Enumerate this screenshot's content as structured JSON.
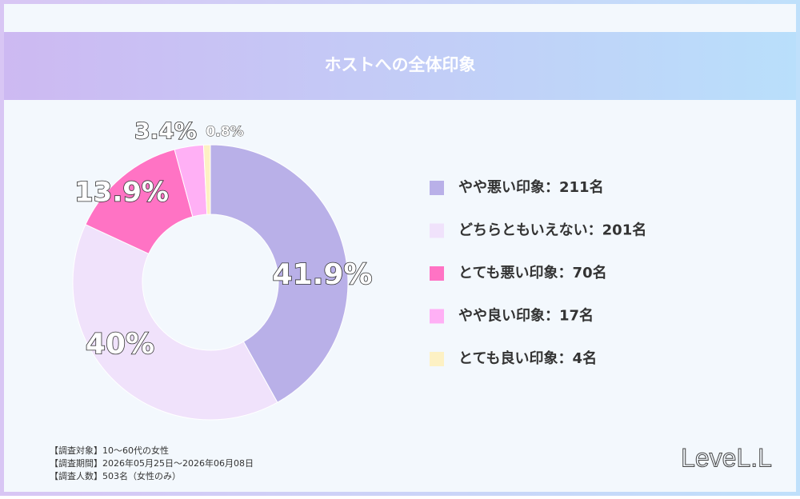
{
  "chart_data": {
    "type": "donut",
    "title": "ホストへの全体印象",
    "categories": [
      "やや悪い印象：211名",
      "どちらともいえない：201名",
      "とても悪い印象：70名",
      "やや良い印象：17名",
      "とても良い印象：4名"
    ],
    "values": [
      41.9,
      40,
      13.9,
      3.4,
      0.8
    ],
    "value_labels": [
      "41.9%",
      "40%",
      "13.9%",
      "3.4%",
      "0.8%"
    ],
    "colors": [
      "#b9b0e8",
      "#f0e2fb",
      "#ff73c4",
      "#ffb0f5",
      "#fdf1c4"
    ],
    "notes": [
      "【調査対象】10〜60代の女性",
      "【調査期間】2026年05月25日〜2026年06月08日",
      "【調査人数】503名（女性のみ）"
    ],
    "logo": "LeveL.L"
  }
}
